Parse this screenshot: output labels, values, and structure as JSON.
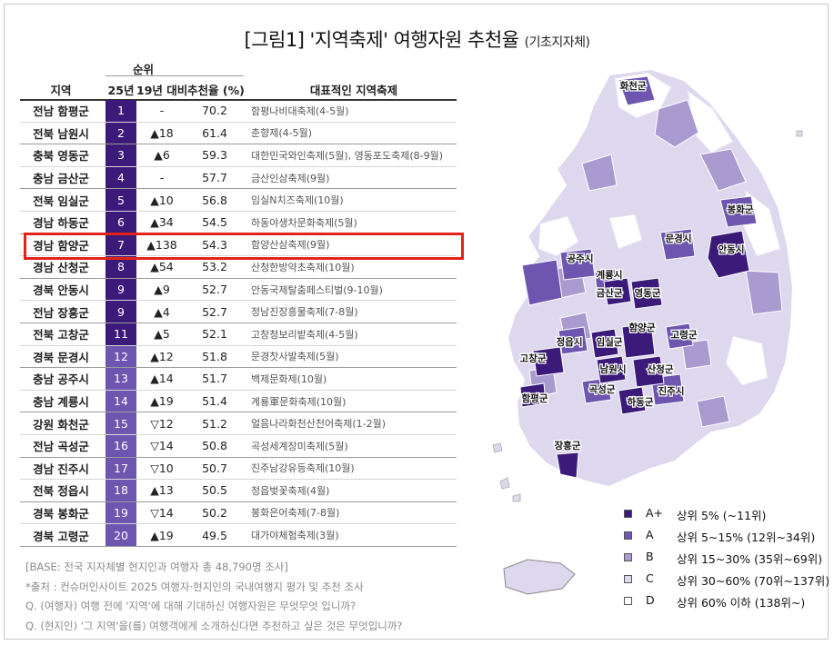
{
  "title": {
    "main": "[그림1] '지역축제' 여행자원 추천율",
    "sub": "(기초지자체)"
  },
  "table": {
    "rank_group": "순위",
    "headers": {
      "region": "지역",
      "rank25": "25년",
      "change": "19년 대비",
      "rate": "추천율 (%)",
      "festival": "대표적인 지역축제"
    }
  },
  "chart_data": {
    "type": "table",
    "title": "[그림1] '지역축제' 여행자원 추천율",
    "columns": [
      "지역",
      "25년",
      "19년 대비",
      "추천율 (%)",
      "대표적인 지역축제"
    ],
    "rows": [
      {
        "region": "전남 함평군",
        "rank": "1",
        "change": "-",
        "rate": "70.2",
        "festival": "함평나비대축제(4-5월)",
        "tier": "A+"
      },
      {
        "region": "전북 남원시",
        "rank": "2",
        "change": "▲18",
        "rate": "61.4",
        "festival": "춘향제(4-5월)",
        "tier": "A+"
      },
      {
        "region": "충북 영동군",
        "rank": "3",
        "change": "▲6",
        "rate": "59.3",
        "festival": "대한민국와인축제(5월), 영동포도축제(8-9월)",
        "tier": "A+"
      },
      {
        "region": "충남 금산군",
        "rank": "4",
        "change": "-",
        "rate": "57.7",
        "festival": "금산인삼축제(9월)",
        "tier": "A+"
      },
      {
        "region": "전북 임실군",
        "rank": "5",
        "change": "▲10",
        "rate": "56.8",
        "festival": "임실N치즈축제(10월)",
        "tier": "A+"
      },
      {
        "region": "경남 하동군",
        "rank": "6",
        "change": "▲34",
        "rate": "54.5",
        "festival": "하동야생차문화축제(5월)",
        "tier": "A+"
      },
      {
        "region": "경남 함양군",
        "rank": "7",
        "change": "▲138",
        "rate": "54.3",
        "festival": "함양산삼축제(9월)",
        "tier": "A+"
      },
      {
        "region": "경남 산청군",
        "rank": "8",
        "change": "▲54",
        "rate": "53.2",
        "festival": "산청한방약초축제(10월)",
        "tier": "A+"
      },
      {
        "region": "경북 안동시",
        "rank": "9",
        "change": "▲9",
        "rate": "52.7",
        "festival": "안동국제탈춤페스티벌(9-10월)",
        "tier": "A+"
      },
      {
        "region": "전남 장흥군",
        "rank": "9",
        "change": "▲4",
        "rate": "52.7",
        "festival": "정남진장흥물축제(7-8월)",
        "tier": "A+"
      },
      {
        "region": "전북 고창군",
        "rank": "11",
        "change": "▲5",
        "rate": "52.1",
        "festival": "고창청보리밭축제(4-5월)",
        "tier": "A+"
      },
      {
        "region": "경북 문경시",
        "rank": "12",
        "change": "▲12",
        "rate": "51.8",
        "festival": "문경찻사발축제(5월)",
        "tier": "A"
      },
      {
        "region": "충남 공주시",
        "rank": "13",
        "change": "▲14",
        "rate": "51.7",
        "festival": "백제문화제(10월)",
        "tier": "A"
      },
      {
        "region": "충남 계룡시",
        "rank": "14",
        "change": "▲19",
        "rate": "51.4",
        "festival": "계룡軍문화축제(10월)",
        "tier": "A"
      },
      {
        "region": "강원 화천군",
        "rank": "15",
        "change": "▽12",
        "rate": "51.2",
        "festival": "얼음나라화천산천어축제(1-2월)",
        "tier": "A"
      },
      {
        "region": "전남 곡성군",
        "rank": "16",
        "change": "▽14",
        "rate": "50.8",
        "festival": "곡성세계장미축제(5월)",
        "tier": "A"
      },
      {
        "region": "경남 진주시",
        "rank": "17",
        "change": "▽10",
        "rate": "50.7",
        "festival": "진주남강유등축제(10월)",
        "tier": "A"
      },
      {
        "region": "전북 정읍시",
        "rank": "18",
        "change": "▲13",
        "rate": "50.5",
        "festival": "정읍벚꽃축제(4월)",
        "tier": "A"
      },
      {
        "region": "경북 봉화군",
        "rank": "19",
        "change": "▽14",
        "rate": "50.2",
        "festival": "봉화은어축제(7-8월)",
        "tier": "A"
      },
      {
        "region": "경북 고령군",
        "rank": "20",
        "change": "▲19",
        "rate": "49.5",
        "festival": "대가야체험축제(3월)",
        "tier": "A"
      }
    ]
  },
  "notes": [
    "[BASE: 전국 지자체별 현지인과 여행자 총 48,790명 조사]",
    "*출처 :  컨슈머인사이트 2025 여행자·현지인의 국내여행지 평가 및 추천 조사",
    "Q. (여행자) 여행 전에 '지역'에 대해 기대하신 여행자원은 무엇무엇 입니까?",
    "Q. (현지인) '그 지역'을(를) 여행객에게 소개하신다면 추천하고 싶은 것은 무엇입니까?"
  ],
  "map": {
    "labels": [
      {
        "name": "화천군",
        "tier": "A"
      },
      {
        "name": "봉화군",
        "tier": "A"
      },
      {
        "name": "문경시",
        "tier": "A"
      },
      {
        "name": "안동시",
        "tier": "A+"
      },
      {
        "name": "공주시",
        "tier": "A"
      },
      {
        "name": "계룡시",
        "tier": "A"
      },
      {
        "name": "금산군",
        "tier": "A+"
      },
      {
        "name": "영동군",
        "tier": "A+"
      },
      {
        "name": "정읍시",
        "tier": "A"
      },
      {
        "name": "임실군",
        "tier": "A+"
      },
      {
        "name": "함양군",
        "tier": "A+"
      },
      {
        "name": "고창군",
        "tier": "A+"
      },
      {
        "name": "고령군",
        "tier": "A"
      },
      {
        "name": "남원시",
        "tier": "A+"
      },
      {
        "name": "산청군",
        "tier": "A+"
      },
      {
        "name": "함평군",
        "tier": "A+"
      },
      {
        "name": "곡성군",
        "tier": "A"
      },
      {
        "name": "진주시",
        "tier": "A"
      },
      {
        "name": "하동군",
        "tier": "A+"
      },
      {
        "name": "장흥군",
        "tier": "A+"
      }
    ]
  },
  "legend": [
    {
      "code": "A+",
      "desc": "상위 5% (~11위)",
      "color": "#3b1a7a"
    },
    {
      "code": "A",
      "desc": "상위 5~15% (12위~34위)",
      "color": "#6e55b0"
    },
    {
      "code": "B",
      "desc": "상위 15~30% (35위~69위)",
      "color": "#a99bd0"
    },
    {
      "code": "C",
      "desc": "상위 30~60% (70위~137위)",
      "color": "#ddd8ee"
    },
    {
      "code": "D",
      "desc": "상위 60% 이하 (138위~)",
      "color": "#ffffff"
    }
  ],
  "colors": {
    "A+": "#3b1a7a",
    "A": "#6e55b0",
    "B": "#a99bd0",
    "C": "#ddd8ee",
    "D": "#ffffff",
    "highlight": "#e2231a"
  }
}
